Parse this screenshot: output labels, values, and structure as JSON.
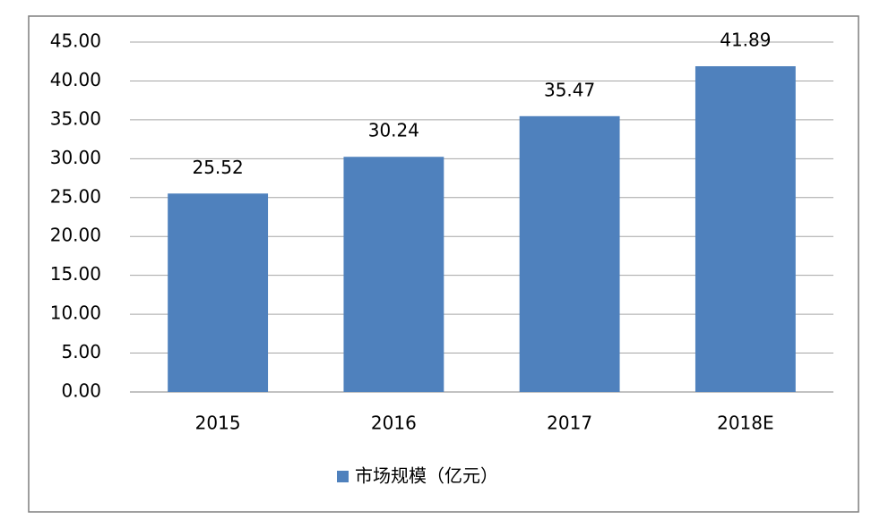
{
  "chart_data": {
    "type": "bar",
    "categories": [
      "2015",
      "2016",
      "2017",
      "2018E"
    ],
    "series": [
      {
        "name": "市场规模（亿元）",
        "color": "#4f81bd",
        "values": [
          25.52,
          30.24,
          35.47,
          41.89
        ]
      }
    ],
    "ylim": [
      0,
      45
    ],
    "yticks": [
      {
        "value": 0,
        "label": "0.00"
      },
      {
        "value": 5,
        "label": "5.00"
      },
      {
        "value": 10,
        "label": "10.00"
      },
      {
        "value": 15,
        "label": "15.00"
      },
      {
        "value": 20,
        "label": "20.00"
      },
      {
        "value": 25,
        "label": "25.00"
      },
      {
        "value": 30,
        "label": "30.00"
      },
      {
        "value": 35,
        "label": "35.00"
      },
      {
        "value": 40,
        "label": "40.00"
      },
      {
        "value": 45,
        "label": "45.00"
      }
    ],
    "grid": true,
    "legend": "bottom"
  }
}
